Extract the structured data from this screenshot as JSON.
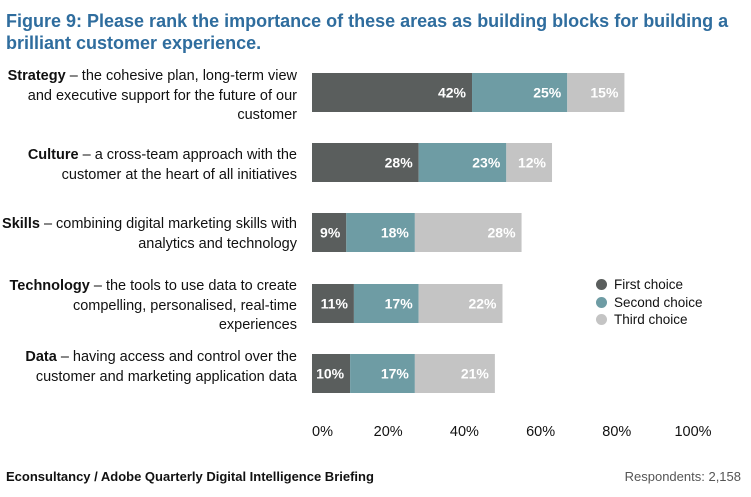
{
  "title": "Figure 9: Please rank the importance of these areas as building blocks for building a brilliant customer experience.",
  "colors": {
    "first": "#5a5e5d",
    "second": "#6e9ca4",
    "third": "#c4c4c4"
  },
  "chart_data": {
    "type": "bar",
    "orientation": "horizontal",
    "stacked": true,
    "categories": [
      {
        "bold": "Strategy",
        "rest": " – the cohesive plan, long-term view and executive support for the future of our customer"
      },
      {
        "bold": "Culture",
        "rest": " – a cross-team approach with the customer at the heart of all initiatives"
      },
      {
        "bold": "Skills",
        "rest": " – combining digital marketing skills with analytics and technology"
      },
      {
        "bold": "Technology",
        "rest": " – the tools to use data to create compelling, personalised, real-time experiences"
      },
      {
        "bold": "Data",
        "rest": " – having access and control over the customer and marketing application data"
      }
    ],
    "series": [
      {
        "name": "First choice",
        "values": [
          42,
          28,
          9,
          11,
          10
        ]
      },
      {
        "name": "Second choice",
        "values": [
          25,
          23,
          18,
          17,
          17
        ]
      },
      {
        "name": "Third choice",
        "values": [
          15,
          12,
          28,
          22,
          21
        ]
      }
    ],
    "xlim": [
      0,
      100
    ],
    "xticks": [
      "0%",
      "20%",
      "40%",
      "60%",
      "80%",
      "100%"
    ],
    "legend_position": "right",
    "grid": false
  },
  "footer": {
    "source": "Econsultancy / Adobe Quarterly Digital Intelligence Briefing",
    "respondents": "Respondents: 2,158"
  }
}
